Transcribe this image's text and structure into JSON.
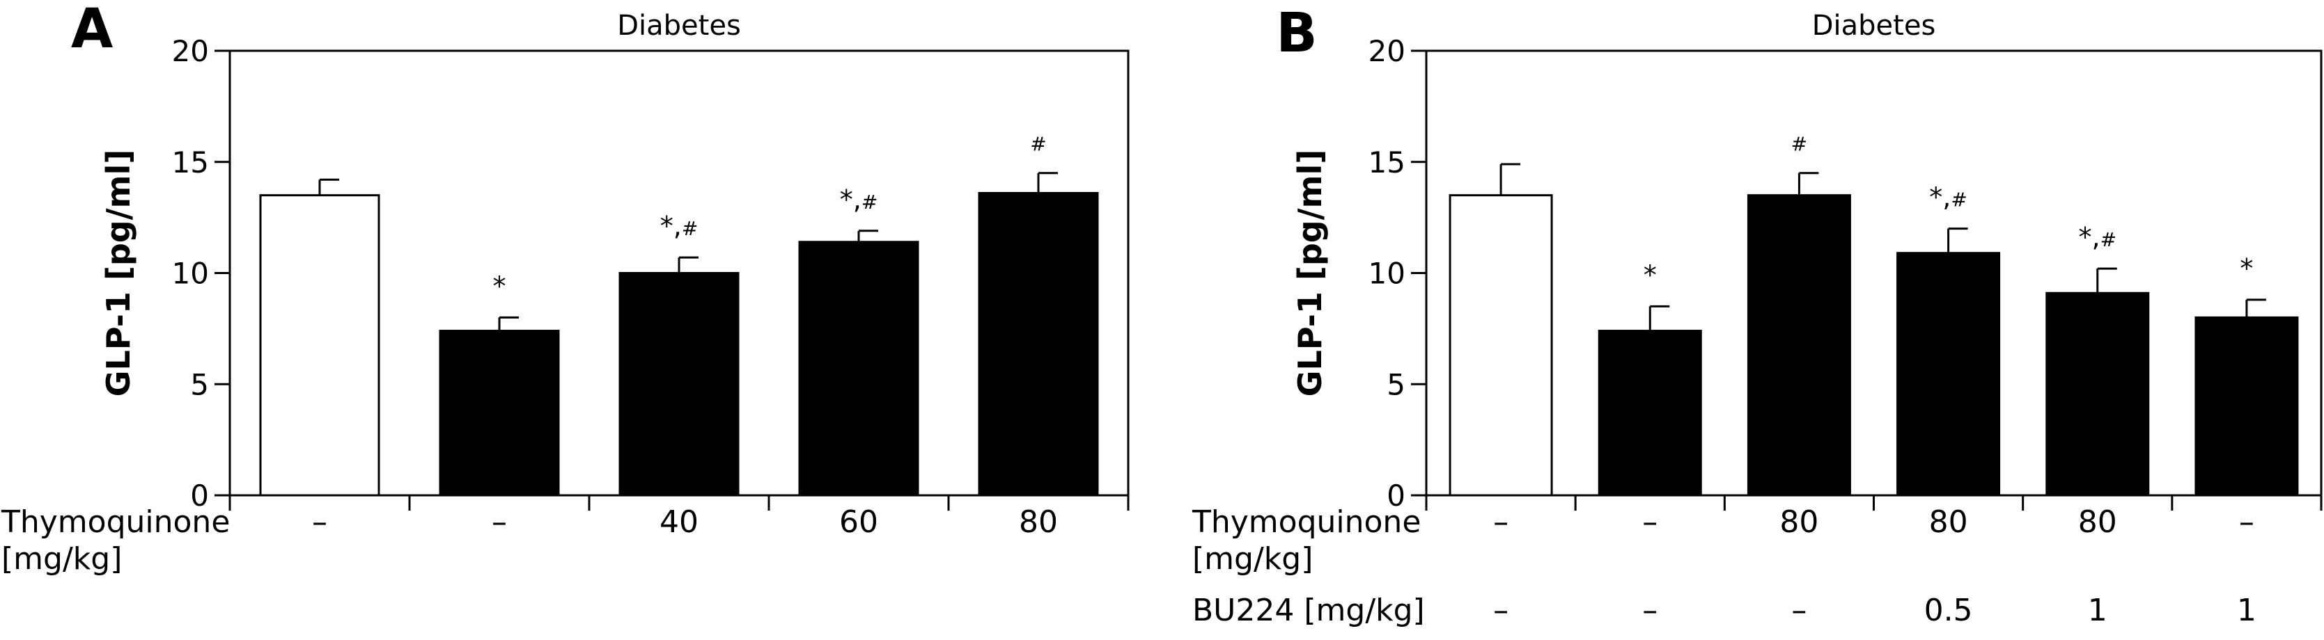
{
  "chart_data": [
    {
      "panel_label": "A",
      "type": "bar",
      "title": "Diabetes",
      "ylabel": "GLP-1 [pg/ml]",
      "ylim": [
        0,
        20
      ],
      "yticks": [
        "0",
        "5",
        "10",
        "15",
        "20"
      ],
      "categories": [
        "1",
        "2",
        "3",
        "4",
        "5"
      ],
      "values": [
        13.5,
        7.4,
        10.0,
        11.4,
        13.6
      ],
      "errors": [
        0.7,
        0.6,
        0.7,
        0.5,
        0.9
      ],
      "bar_fills": [
        "white",
        "black",
        "black",
        "black",
        "black"
      ],
      "significance": [
        "",
        "*",
        "*,#",
        "*,#",
        "#"
      ],
      "x_rows": [
        {
          "label_lines": [
            "Thymoquinone",
            "[mg/kg]"
          ],
          "values": [
            "–",
            "–",
            "40",
            "60",
            "80"
          ]
        }
      ]
    },
    {
      "panel_label": "B",
      "type": "bar",
      "title": "Diabetes",
      "ylabel": "GLP-1 [pg/ml]",
      "ylim": [
        0,
        20
      ],
      "yticks": [
        "0",
        "5",
        "10",
        "15",
        "20"
      ],
      "categories": [
        "1",
        "2",
        "3",
        "4",
        "5",
        "6"
      ],
      "values": [
        13.5,
        7.4,
        13.5,
        10.9,
        9.1,
        8.0
      ],
      "errors": [
        1.4,
        1.1,
        1.0,
        1.1,
        1.1,
        0.8
      ],
      "bar_fills": [
        "white",
        "black",
        "black",
        "black",
        "black",
        "black"
      ],
      "significance": [
        "",
        "*",
        "#",
        "*,#",
        "*,#",
        "*"
      ],
      "x_rows": [
        {
          "label_lines": [
            "Thymoquinone",
            "[mg/kg]"
          ],
          "values": [
            "–",
            "–",
            "80",
            "80",
            "80",
            "–"
          ]
        },
        {
          "label_lines": [
            "BU224 [mg/kg]"
          ],
          "values": [
            "–",
            "–",
            "–",
            "0.5",
            "1",
            "1"
          ]
        }
      ]
    }
  ]
}
